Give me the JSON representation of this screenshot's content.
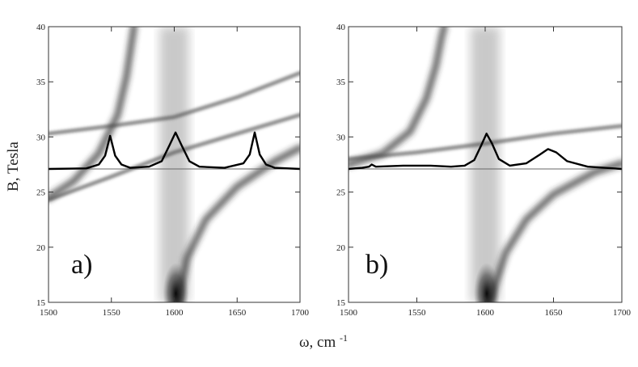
{
  "figure": {
    "ylabel": "B, Tesla",
    "xlabel_main": "ω, cm",
    "xlabel_sup": "-1"
  },
  "chart_data": [
    {
      "type": "heatmap",
      "panel_label": "a)",
      "xlim": [
        1500,
        1700
      ],
      "ylim": [
        15,
        40
      ],
      "xticks": [
        1500,
        1550,
        1600,
        1650,
        1700
      ],
      "yticks": [
        15,
        20,
        25,
        30,
        35,
        40
      ],
      "grid": false,
      "bands": [
        {
          "name": "",
          "x": [
            1500,
            1520,
            1540,
            1555,
            1562,
            1566,
            1568
          ],
          "y": [
            24.5,
            26.0,
            28.5,
            32.0,
            35.5,
            38.5,
            40.0
          ]
        },
        {
          "name": "",
          "x": [
            1600,
            1600
          ],
          "y": [
            15,
            40
          ]
        },
        {
          "name": "",
          "x": [
            1500,
            1550,
            1600,
            1650,
            1700
          ],
          "y": [
            30.3,
            31.0,
            31.8,
            33.6,
            35.8
          ]
        },
        {
          "name": "",
          "x": [
            1500,
            1550,
            1600,
            1650,
            1700
          ],
          "y": [
            24.3,
            26.4,
            28.6,
            30.3,
            32.0
          ]
        },
        {
          "name": "",
          "x": [
            1603,
            1610,
            1625,
            1650,
            1680,
            1700
          ],
          "y": [
            15.0,
            19.0,
            22.5,
            25.5,
            27.8,
            29.0
          ]
        }
      ],
      "spectrum": {
        "baseline_B": 27.1,
        "x": [
          1500,
          1530,
          1540,
          1545,
          1549,
          1553,
          1558,
          1565,
          1580,
          1590,
          1596,
          1601,
          1606,
          1612,
          1620,
          1640,
          1655,
          1660,
          1664,
          1668,
          1673,
          1680,
          1700
        ],
        "y": [
          27.1,
          27.15,
          27.5,
          28.3,
          30.1,
          28.3,
          27.5,
          27.2,
          27.3,
          27.8,
          29.2,
          30.4,
          29.2,
          27.8,
          27.3,
          27.2,
          27.6,
          28.4,
          30.4,
          28.4,
          27.5,
          27.2,
          27.1
        ]
      }
    },
    {
      "type": "heatmap",
      "panel_label": "b)",
      "xlim": [
        1500,
        1700
      ],
      "ylim": [
        15,
        40
      ],
      "xticks": [
        1500,
        1550,
        1600,
        1650,
        1700
      ],
      "yticks": [
        15,
        20,
        25,
        30,
        35,
        40
      ],
      "grid": false,
      "bands": [
        {
          "name": "",
          "x": [
            1500,
            1525,
            1545,
            1557,
            1564,
            1568,
            1570
          ],
          "y": [
            27.5,
            28.5,
            30.5,
            33.5,
            36.5,
            39.0,
            40.0
          ]
        },
        {
          "name": "",
          "x": [
            1600,
            1600
          ],
          "y": [
            15,
            40
          ]
        },
        {
          "name": "",
          "x": [
            1500,
            1550,
            1600,
            1650,
            1700
          ],
          "y": [
            28.0,
            28.6,
            29.4,
            30.3,
            31.0
          ]
        },
        {
          "name": "",
          "x": [
            1603,
            1615,
            1630,
            1650,
            1680,
            1700
          ],
          "y": [
            15.0,
            19.5,
            22.5,
            24.8,
            26.8,
            27.6
          ]
        }
      ],
      "spectrum": {
        "baseline_B": 27.1,
        "x": [
          1500,
          1510,
          1515,
          1517,
          1520,
          1540,
          1560,
          1575,
          1585,
          1592,
          1597,
          1601,
          1605,
          1610,
          1618,
          1630,
          1640,
          1646,
          1652,
          1660,
          1675,
          1700
        ],
        "y": [
          27.1,
          27.2,
          27.3,
          27.5,
          27.3,
          27.4,
          27.4,
          27.3,
          27.4,
          27.9,
          29.2,
          30.3,
          29.4,
          28.0,
          27.4,
          27.6,
          28.4,
          28.9,
          28.6,
          27.8,
          27.3,
          27.1
        ]
      }
    }
  ]
}
